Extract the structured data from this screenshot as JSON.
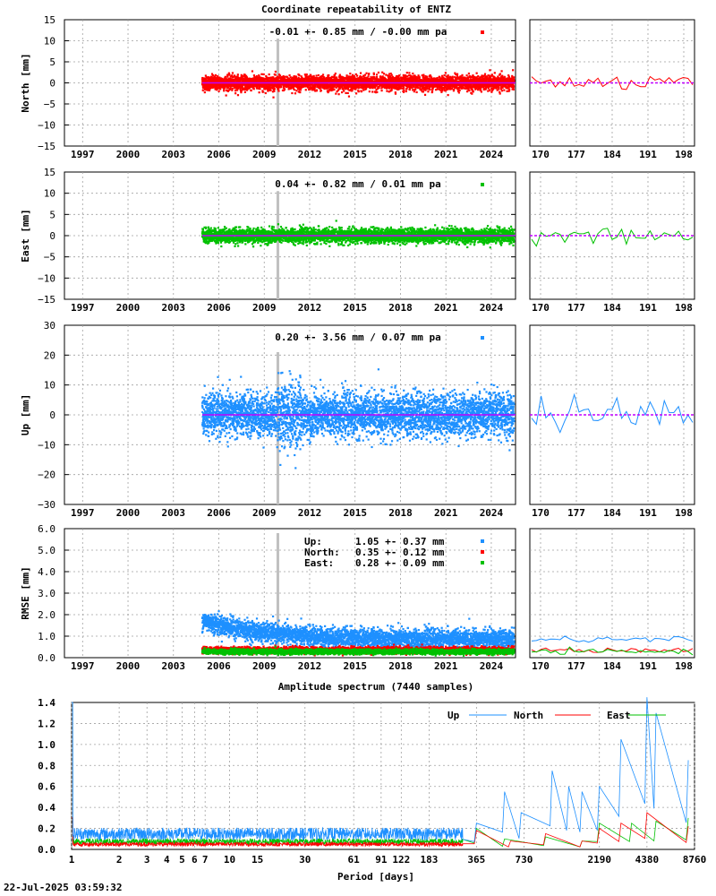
{
  "title": "Coordinate repeatability of ENTZ",
  "timestamp": "22-Jul-2025 03:59:32",
  "colors": {
    "north": "#ff0000",
    "east": "#00c000",
    "up": "#1e90ff",
    "model": "#c000ff",
    "grid": "#a0a0a0",
    "spike": "#c0c0c0"
  },
  "chart_data": [
    {
      "type": "scatter",
      "name": "north",
      "ylabel": "North [mm]",
      "ylim": [
        -15,
        15
      ],
      "yticks": [
        "15",
        "10",
        "5",
        "0",
        "−5",
        "−10",
        "−15"
      ],
      "xlim": [
        1995.8,
        2025.6
      ],
      "xticks": [
        "1997",
        "2000",
        "2003",
        "2006",
        "2009",
        "2012",
        "2015",
        "2018",
        "2021",
        "2024"
      ],
      "stats": "-0.01 +- 0.85 mm / -0.00 mm pa",
      "start": 2004.9,
      "spread": 0.85,
      "zoom": {
        "xticks": [
          "170",
          "177",
          "184",
          "191",
          "198"
        ],
        "ylim": [
          -15,
          15
        ]
      }
    },
    {
      "type": "scatter",
      "name": "east",
      "ylabel": "East [mm]",
      "ylim": [
        -15,
        15
      ],
      "yticks": [
        "15",
        "10",
        "5",
        "0",
        "−5",
        "−10",
        "−15"
      ],
      "xlim": [
        1995.8,
        2025.6
      ],
      "xticks": [
        "1997",
        "2000",
        "2003",
        "2006",
        "2009",
        "2012",
        "2015",
        "2018",
        "2021",
        "2024"
      ],
      "stats": " 0.04 +- 0.82 mm /  0.01 mm pa",
      "start": 2004.9,
      "spread": 0.82,
      "zoom": {
        "xticks": [
          "170",
          "177",
          "184",
          "191",
          "198"
        ],
        "ylim": [
          -15,
          15
        ]
      }
    },
    {
      "type": "scatter",
      "name": "up",
      "ylabel": "Up [mm]",
      "ylim": [
        -30,
        30
      ],
      "yticks": [
        "30",
        "20",
        "10",
        "0",
        "−10",
        "−20",
        "−30"
      ],
      "xlim": [
        1995.8,
        2025.6
      ],
      "xticks": [
        "1997",
        "2000",
        "2003",
        "2006",
        "2009",
        "2012",
        "2015",
        "2018",
        "2021",
        "2024"
      ],
      "stats": " 0.20 +- 3.56 mm /  0.07 mm pa",
      "start": 2004.9,
      "spread": 3.56,
      "zoom": {
        "xticks": [
          "170",
          "177",
          "184",
          "191",
          "198"
        ],
        "ylim": [
          -30,
          30
        ]
      }
    },
    {
      "type": "scatter",
      "name": "rmse",
      "ylabel": "RMSE [mm]",
      "ylim": [
        0,
        6
      ],
      "yticks": [
        "6.0",
        "5.0",
        "4.0",
        "3.0",
        "2.0",
        "1.0",
        "0.0"
      ],
      "xlim": [
        1995.8,
        2025.6
      ],
      "xticks": [
        "1997",
        "2000",
        "2003",
        "2006",
        "2009",
        "2012",
        "2015",
        "2018",
        "2021",
        "2024"
      ],
      "legend": [
        {
          "label": "Up:",
          "value": "1.05 +- 0.37 mm",
          "series": "up"
        },
        {
          "label": "North:",
          "value": "0.35 +- 0.12 mm",
          "series": "north"
        },
        {
          "label": "East:",
          "value": "0.28 +- 0.09 mm",
          "series": "east"
        }
      ],
      "zoom": {
        "xticks": [
          "170",
          "177",
          "184",
          "191",
          "198"
        ],
        "ylim": [
          0,
          6
        ]
      }
    },
    {
      "type": "line",
      "name": "spectrum",
      "title": "Amplitude spectrum (7440 samples)",
      "xlabel": "Period [days]",
      "ylim": [
        0,
        1.4
      ],
      "yticks": [
        "1.4",
        "1.2",
        "1.0",
        "0.8",
        "0.6",
        "0.4",
        "0.2",
        "0.0"
      ],
      "xticks": [
        "1",
        "2",
        "3",
        "4",
        "5",
        "6",
        "7",
        "10",
        "15",
        "30",
        "61",
        "91",
        "122",
        "183",
        "365",
        "730",
        "2190",
        "4380",
        "8760"
      ],
      "xtick_values": [
        1,
        2,
        3,
        4,
        5,
        6,
        7,
        10,
        15,
        30,
        61,
        91,
        122,
        183,
        365,
        730,
        2190,
        4380,
        8760
      ],
      "legend": [
        "Up",
        "North",
        "East"
      ],
      "peaks": {
        "up": [
          [
            365,
            0.25
          ],
          [
            550,
            0.55
          ],
          [
            700,
            0.35
          ],
          [
            1100,
            0.75
          ],
          [
            1400,
            0.6
          ],
          [
            1700,
            0.55
          ],
          [
            2190,
            0.6
          ],
          [
            3000,
            1.05
          ],
          [
            4380,
            1.45
          ],
          [
            5000,
            1.3
          ],
          [
            8000,
            0.85
          ]
        ],
        "north": [
          [
            365,
            0.18
          ],
          [
            600,
            0.08
          ],
          [
            1000,
            0.15
          ],
          [
            1700,
            0.08
          ],
          [
            2190,
            0.2
          ],
          [
            3000,
            0.25
          ],
          [
            4380,
            0.35
          ],
          [
            8000,
            0.22
          ]
        ],
        "east": [
          [
            365,
            0.2
          ],
          [
            550,
            0.1
          ],
          [
            1000,
            0.12
          ],
          [
            1700,
            0.08
          ],
          [
            2190,
            0.25
          ],
          [
            3500,
            0.25
          ],
          [
            5000,
            0.27
          ],
          [
            8000,
            0.3
          ]
        ]
      }
    }
  ]
}
